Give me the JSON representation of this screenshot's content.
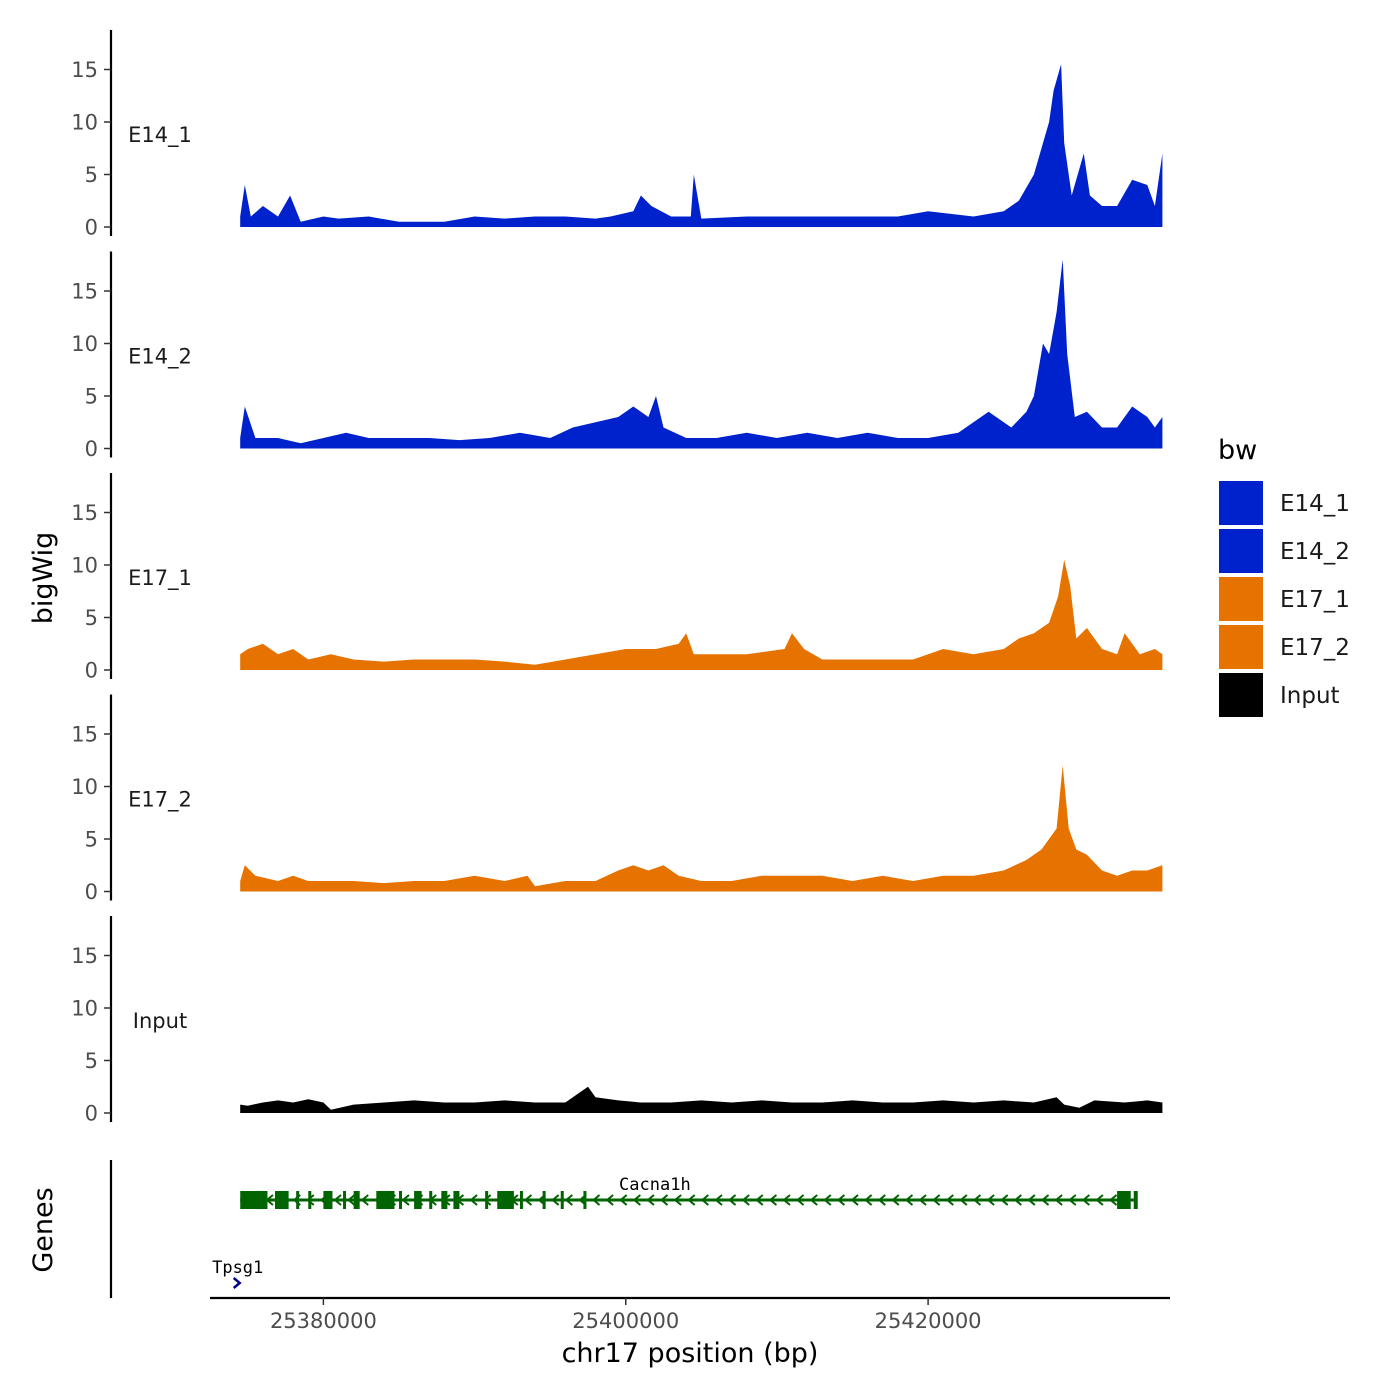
{
  "chart_data": {
    "type": "area",
    "title": "",
    "xlabel": "chr17 position (bp)",
    "ylabel": "bigWig",
    "genes_label": "Genes",
    "xlim": [
      25372500,
      25436000
    ],
    "data_range": [
      25374500,
      25435500
    ],
    "ylim": [
      0,
      19
    ],
    "y_ticks": [
      0,
      5,
      10,
      15
    ],
    "x_ticks": [
      25380000,
      25400000,
      25420000
    ],
    "x_tick_labels": [
      "25380000",
      "25400000",
      "25420000"
    ],
    "legend_title": "bw",
    "series": [
      {
        "name": "E14_1",
        "color": "#0022CC",
        "points": [
          [
            25374500,
            1
          ],
          [
            25374800,
            4
          ],
          [
            25375200,
            1
          ],
          [
            25376000,
            2
          ],
          [
            25377000,
            1
          ],
          [
            25377800,
            3
          ],
          [
            25378500,
            0.5
          ],
          [
            25380000,
            1
          ],
          [
            25381000,
            0.8
          ],
          [
            25383000,
            1
          ],
          [
            25385000,
            0.5
          ],
          [
            25388000,
            0.5
          ],
          [
            25390000,
            1
          ],
          [
            25392000,
            0.8
          ],
          [
            25394000,
            1
          ],
          [
            25396000,
            1
          ],
          [
            25398000,
            0.8
          ],
          [
            25399000,
            1
          ],
          [
            25400500,
            1.5
          ],
          [
            25401000,
            3
          ],
          [
            25401700,
            2
          ],
          [
            25403000,
            1
          ],
          [
            25404300,
            1
          ],
          [
            25404500,
            5
          ],
          [
            25405000,
            0.8
          ],
          [
            25408000,
            1
          ],
          [
            25412000,
            1
          ],
          [
            25416000,
            1
          ],
          [
            25418000,
            1
          ],
          [
            25420000,
            1.5
          ],
          [
            25423000,
            1
          ],
          [
            25425000,
            1.5
          ],
          [
            25426000,
            2.5
          ],
          [
            25427000,
            5
          ],
          [
            25427600,
            8
          ],
          [
            25428000,
            10
          ],
          [
            25428300,
            13
          ],
          [
            25428800,
            15.5
          ],
          [
            25429000,
            8
          ],
          [
            25429500,
            3
          ],
          [
            25430300,
            7
          ],
          [
            25430700,
            3
          ],
          [
            25431500,
            2
          ],
          [
            25432500,
            2
          ],
          [
            25433500,
            4.5
          ],
          [
            25434500,
            4
          ],
          [
            25435000,
            2
          ],
          [
            25435500,
            7
          ]
        ]
      },
      {
        "name": "E14_2",
        "color": "#0022CC",
        "points": [
          [
            25374500,
            1
          ],
          [
            25374800,
            4
          ],
          [
            25375500,
            1
          ],
          [
            25377000,
            1
          ],
          [
            25378500,
            0.5
          ],
          [
            25380000,
            1
          ],
          [
            25381500,
            1.5
          ],
          [
            25383000,
            1
          ],
          [
            25385000,
            1
          ],
          [
            25387000,
            1
          ],
          [
            25389000,
            0.8
          ],
          [
            25391000,
            1
          ],
          [
            25393000,
            1.5
          ],
          [
            25395000,
            1
          ],
          [
            25396500,
            2
          ],
          [
            25398000,
            2.5
          ],
          [
            25399500,
            3
          ],
          [
            25400500,
            4
          ],
          [
            25401500,
            3
          ],
          [
            25402000,
            5
          ],
          [
            25402500,
            2
          ],
          [
            25404000,
            1
          ],
          [
            25406000,
            1
          ],
          [
            25408000,
            1.5
          ],
          [
            25410000,
            1
          ],
          [
            25412000,
            1.5
          ],
          [
            25414000,
            1
          ],
          [
            25416000,
            1.5
          ],
          [
            25418000,
            1
          ],
          [
            25420000,
            1
          ],
          [
            25422000,
            1.5
          ],
          [
            25424000,
            3.5
          ],
          [
            25425500,
            2
          ],
          [
            25426500,
            3.5
          ],
          [
            25427000,
            5
          ],
          [
            25427600,
            10
          ],
          [
            25428000,
            9
          ],
          [
            25428500,
            13
          ],
          [
            25428900,
            18
          ],
          [
            25429200,
            9
          ],
          [
            25429700,
            3
          ],
          [
            25430500,
            3.5
          ],
          [
            25431500,
            2
          ],
          [
            25432500,
            2
          ],
          [
            25433500,
            4
          ],
          [
            25434500,
            3
          ],
          [
            25435000,
            2
          ],
          [
            25435500,
            3
          ]
        ]
      },
      {
        "name": "E17_1",
        "color": "#E67300",
        "points": [
          [
            25374500,
            1.5
          ],
          [
            25375000,
            2
          ],
          [
            25376000,
            2.5
          ],
          [
            25377000,
            1.5
          ],
          [
            25378000,
            2
          ],
          [
            25379000,
            1
          ],
          [
            25380500,
            1.5
          ],
          [
            25382000,
            1
          ],
          [
            25384000,
            0.8
          ],
          [
            25386000,
            1
          ],
          [
            25388000,
            1
          ],
          [
            25390000,
            1
          ],
          [
            25392000,
            0.8
          ],
          [
            25394000,
            0.5
          ],
          [
            25396000,
            1
          ],
          [
            25398000,
            1.5
          ],
          [
            25400000,
            2
          ],
          [
            25402000,
            2
          ],
          [
            25403500,
            2.5
          ],
          [
            25404000,
            3.5
          ],
          [
            25404500,
            1.5
          ],
          [
            25406000,
            1.5
          ],
          [
            25408000,
            1.5
          ],
          [
            25410500,
            2
          ],
          [
            25411000,
            3.5
          ],
          [
            25411800,
            2
          ],
          [
            25413000,
            1
          ],
          [
            25415000,
            1
          ],
          [
            25417000,
            1
          ],
          [
            25419000,
            1
          ],
          [
            25421000,
            2
          ],
          [
            25423000,
            1.5
          ],
          [
            25425000,
            2
          ],
          [
            25426000,
            3
          ],
          [
            25427000,
            3.5
          ],
          [
            25428000,
            4.5
          ],
          [
            25428600,
            7
          ],
          [
            25429000,
            10.5
          ],
          [
            25429400,
            8
          ],
          [
            25429800,
            3
          ],
          [
            25430500,
            4
          ],
          [
            25431500,
            2
          ],
          [
            25432500,
            1.5
          ],
          [
            25433000,
            3.5
          ],
          [
            25434000,
            1.5
          ],
          [
            25435000,
            2
          ],
          [
            25435500,
            1.5
          ]
        ]
      },
      {
        "name": "E17_2",
        "color": "#E67300",
        "points": [
          [
            25374500,
            1
          ],
          [
            25374800,
            2.5
          ],
          [
            25375500,
            1.5
          ],
          [
            25377000,
            1
          ],
          [
            25378000,
            1.5
          ],
          [
            25379000,
            1
          ],
          [
            25380500,
            1
          ],
          [
            25382000,
            1
          ],
          [
            25384000,
            0.8
          ],
          [
            25386000,
            1
          ],
          [
            25388000,
            1
          ],
          [
            25390000,
            1.5
          ],
          [
            25392000,
            1
          ],
          [
            25393500,
            1.5
          ],
          [
            25394000,
            0.5
          ],
          [
            25396000,
            1
          ],
          [
            25398000,
            1
          ],
          [
            25399500,
            2
          ],
          [
            25400500,
            2.5
          ],
          [
            25401500,
            2
          ],
          [
            25402500,
            2.5
          ],
          [
            25403500,
            1.5
          ],
          [
            25405000,
            1
          ],
          [
            25407000,
            1
          ],
          [
            25409000,
            1.5
          ],
          [
            25411000,
            1.5
          ],
          [
            25413000,
            1.5
          ],
          [
            25415000,
            1
          ],
          [
            25417000,
            1.5
          ],
          [
            25419000,
            1
          ],
          [
            25421000,
            1.5
          ],
          [
            25423000,
            1.5
          ],
          [
            25425000,
            2
          ],
          [
            25426500,
            3
          ],
          [
            25427500,
            4
          ],
          [
            25428500,
            6
          ],
          [
            25428900,
            12
          ],
          [
            25429300,
            6
          ],
          [
            25429800,
            4
          ],
          [
            25430500,
            3.5
          ],
          [
            25431500,
            2
          ],
          [
            25432500,
            1.5
          ],
          [
            25433500,
            2
          ],
          [
            25434500,
            2
          ],
          [
            25435500,
            2.5
          ]
        ]
      },
      {
        "name": "Input",
        "color": "#000000",
        "points": [
          [
            25374500,
            0.8
          ],
          [
            25375000,
            0.7
          ],
          [
            25376000,
            1
          ],
          [
            25377000,
            1.2
          ],
          [
            25378000,
            1
          ],
          [
            25379000,
            1.3
          ],
          [
            25380000,
            1
          ],
          [
            25380500,
            0.3
          ],
          [
            25382000,
            0.8
          ],
          [
            25384000,
            1
          ],
          [
            25386000,
            1.2
          ],
          [
            25388000,
            1
          ],
          [
            25390000,
            1
          ],
          [
            25392000,
            1.2
          ],
          [
            25394000,
            1
          ],
          [
            25396000,
            1
          ],
          [
            25397500,
            2.5
          ],
          [
            25398000,
            1.5
          ],
          [
            25399500,
            1.2
          ],
          [
            25401000,
            1
          ],
          [
            25403000,
            1
          ],
          [
            25405000,
            1.2
          ],
          [
            25407000,
            1
          ],
          [
            25409000,
            1.2
          ],
          [
            25411000,
            1
          ],
          [
            25413000,
            1
          ],
          [
            25415000,
            1.2
          ],
          [
            25417000,
            1
          ],
          [
            25419000,
            1
          ],
          [
            25421000,
            1.2
          ],
          [
            25423000,
            1
          ],
          [
            25425000,
            1.2
          ],
          [
            25427000,
            1
          ],
          [
            25428500,
            1.5
          ],
          [
            25429000,
            0.8
          ],
          [
            25430000,
            0.5
          ],
          [
            25431000,
            1.2
          ],
          [
            25433000,
            1
          ],
          [
            25434500,
            1.2
          ],
          [
            25435500,
            1
          ]
        ]
      }
    ],
    "genes": [
      {
        "name": "Cacna1h",
        "start": 25374500,
        "end": 25433800,
        "strand": "-",
        "color": "#006400",
        "exons": [
          [
            25374500,
            25376300
          ],
          [
            25376800,
            25377700
          ],
          [
            25378200,
            25378400
          ],
          [
            25379000,
            25379200
          ],
          [
            25380000,
            25380600
          ],
          [
            25381300,
            25381500
          ],
          [
            25382000,
            25382400
          ],
          [
            25383500,
            25384700
          ],
          [
            25385000,
            25385200
          ],
          [
            25386000,
            25386500
          ],
          [
            25387000,
            25387200
          ],
          [
            25387800,
            25388200
          ],
          [
            25388600,
            25389000
          ],
          [
            25390700,
            25390900
          ],
          [
            25391500,
            25392600
          ],
          [
            25393000,
            25393200
          ],
          [
            25394500,
            25394700
          ],
          [
            25395700,
            25395900
          ],
          [
            25397200,
            25397400
          ],
          [
            25432500,
            25433400
          ]
        ]
      },
      {
        "name": "Tpsg1",
        "start": 25374200,
        "end": 25374600,
        "strand": "+",
        "color": "#00008B",
        "exons": []
      }
    ]
  }
}
